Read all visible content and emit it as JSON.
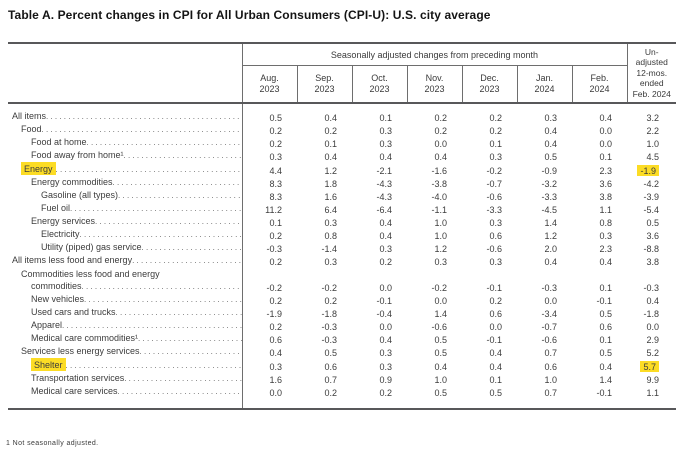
{
  "title": "Table A. Percent changes in CPI for All Urban Consumers (CPI-U): U.S. city average",
  "colors": {
    "highlight": "#fcdc25",
    "border": "#58585a",
    "text": "#3c3c3c"
  },
  "table": {
    "span_header": "Seasonally adjusted changes from preceding month",
    "unadjusted_header": "Un-\nadjusted\n12-mos.\nended\nFeb. 2024",
    "months": [
      "Aug.\n2023",
      "Sep.\n2023",
      "Oct.\n2023",
      "Nov.\n2023",
      "Dec.\n2023",
      "Jan.\n2024",
      "Feb.\n2024"
    ],
    "rows": [
      {
        "label": "All items",
        "indent": 0,
        "values": [
          "0.5",
          "0.4",
          "0.1",
          "0.2",
          "0.2",
          "0.3",
          "0.4",
          "3.2"
        ]
      },
      {
        "label": "Food",
        "indent": 1,
        "values": [
          "0.2",
          "0.2",
          "0.3",
          "0.2",
          "0.2",
          "0.4",
          "0.0",
          "2.2"
        ]
      },
      {
        "label": "Food at home",
        "indent": 2,
        "values": [
          "0.2",
          "0.1",
          "0.3",
          "0.0",
          "0.1",
          "0.4",
          "0.0",
          "1.0"
        ]
      },
      {
        "label": "Food away from home¹",
        "indent": 2,
        "values": [
          "0.3",
          "0.4",
          "0.4",
          "0.4",
          "0.3",
          "0.5",
          "0.1",
          "4.5"
        ]
      },
      {
        "label": "Energy",
        "indent": 1,
        "label_hl": true,
        "hl_cols": [
          7
        ],
        "values": [
          "4.4",
          "1.2",
          "-2.1",
          "-1.6",
          "-0.2",
          "-0.9",
          "2.3",
          "-1.9"
        ]
      },
      {
        "label": "Energy commodities",
        "indent": 2,
        "values": [
          "8.3",
          "1.8",
          "-4.3",
          "-3.8",
          "-0.7",
          "-3.2",
          "3.6",
          "-4.2"
        ]
      },
      {
        "label": "Gasoline (all types)",
        "indent": 3,
        "values": [
          "8.3",
          "1.6",
          "-4.3",
          "-4.0",
          "-0.6",
          "-3.3",
          "3.8",
          "-3.9"
        ]
      },
      {
        "label": "Fuel oil",
        "indent": 3,
        "values": [
          "11.2",
          "6.4",
          "-6.4",
          "-1.1",
          "-3.3",
          "-4.5",
          "1.1",
          "-5.4"
        ]
      },
      {
        "label": "Energy services",
        "indent": 2,
        "values": [
          "0.1",
          "0.3",
          "0.4",
          "1.0",
          "0.3",
          "1.4",
          "0.8",
          "0.5"
        ]
      },
      {
        "label": "Electricity",
        "indent": 3,
        "values": [
          "0.2",
          "0.8",
          "0.4",
          "1.0",
          "0.6",
          "1.2",
          "0.3",
          "3.6"
        ]
      },
      {
        "label": "Utility (piped) gas service",
        "indent": 3,
        "values": [
          "-0.3",
          "-1.4",
          "0.3",
          "1.2",
          "-0.6",
          "2.0",
          "2.3",
          "-8.8"
        ]
      },
      {
        "label": "All items less food and energy",
        "indent": 0,
        "values": [
          "0.2",
          "0.3",
          "0.2",
          "0.3",
          "0.3",
          "0.4",
          "0.4",
          "3.8"
        ]
      },
      {
        "label_top": "Commodities less food and energy",
        "indent": 1,
        "label": "commodities",
        "indent2": 2,
        "values": [
          "-0.2",
          "-0.2",
          "0.0",
          "-0.2",
          "-0.1",
          "-0.3",
          "0.1",
          "-0.3"
        ]
      },
      {
        "label": "New vehicles",
        "indent": 2,
        "values": [
          "0.2",
          "0.2",
          "-0.1",
          "0.0",
          "0.2",
          "0.0",
          "-0.1",
          "0.4"
        ]
      },
      {
        "label": "Used cars and trucks",
        "indent": 2,
        "values": [
          "-1.9",
          "-1.8",
          "-0.4",
          "1.4",
          "0.6",
          "-3.4",
          "0.5",
          "-1.8"
        ]
      },
      {
        "label": "Apparel",
        "indent": 2,
        "values": [
          "0.2",
          "-0.3",
          "0.0",
          "-0.6",
          "0.0",
          "-0.7",
          "0.6",
          "0.0"
        ]
      },
      {
        "label": "Medical care commodities¹",
        "indent": 2,
        "values": [
          "0.6",
          "-0.3",
          "0.4",
          "0.5",
          "-0.1",
          "-0.6",
          "0.1",
          "2.9"
        ]
      },
      {
        "label": "Services less energy services",
        "indent": 1,
        "values": [
          "0.4",
          "0.5",
          "0.3",
          "0.5",
          "0.4",
          "0.7",
          "0.5",
          "5.2"
        ]
      },
      {
        "label": "Shelter",
        "indent": 2,
        "label_hl": true,
        "hl_cols": [
          7
        ],
        "values": [
          "0.3",
          "0.6",
          "0.3",
          "0.4",
          "0.4",
          "0.6",
          "0.4",
          "5.7"
        ]
      },
      {
        "label": "Transportation services",
        "indent": 2,
        "values": [
          "1.6",
          "0.7",
          "0.9",
          "1.0",
          "0.1",
          "1.0",
          "1.4",
          "9.9"
        ]
      },
      {
        "label": "Medical care services",
        "indent": 2,
        "values": [
          "0.0",
          "0.2",
          "0.2",
          "0.5",
          "0.5",
          "0.7",
          "-0.1",
          "1.1"
        ]
      }
    ]
  },
  "footnote": "1 Not seasonally adjusted."
}
